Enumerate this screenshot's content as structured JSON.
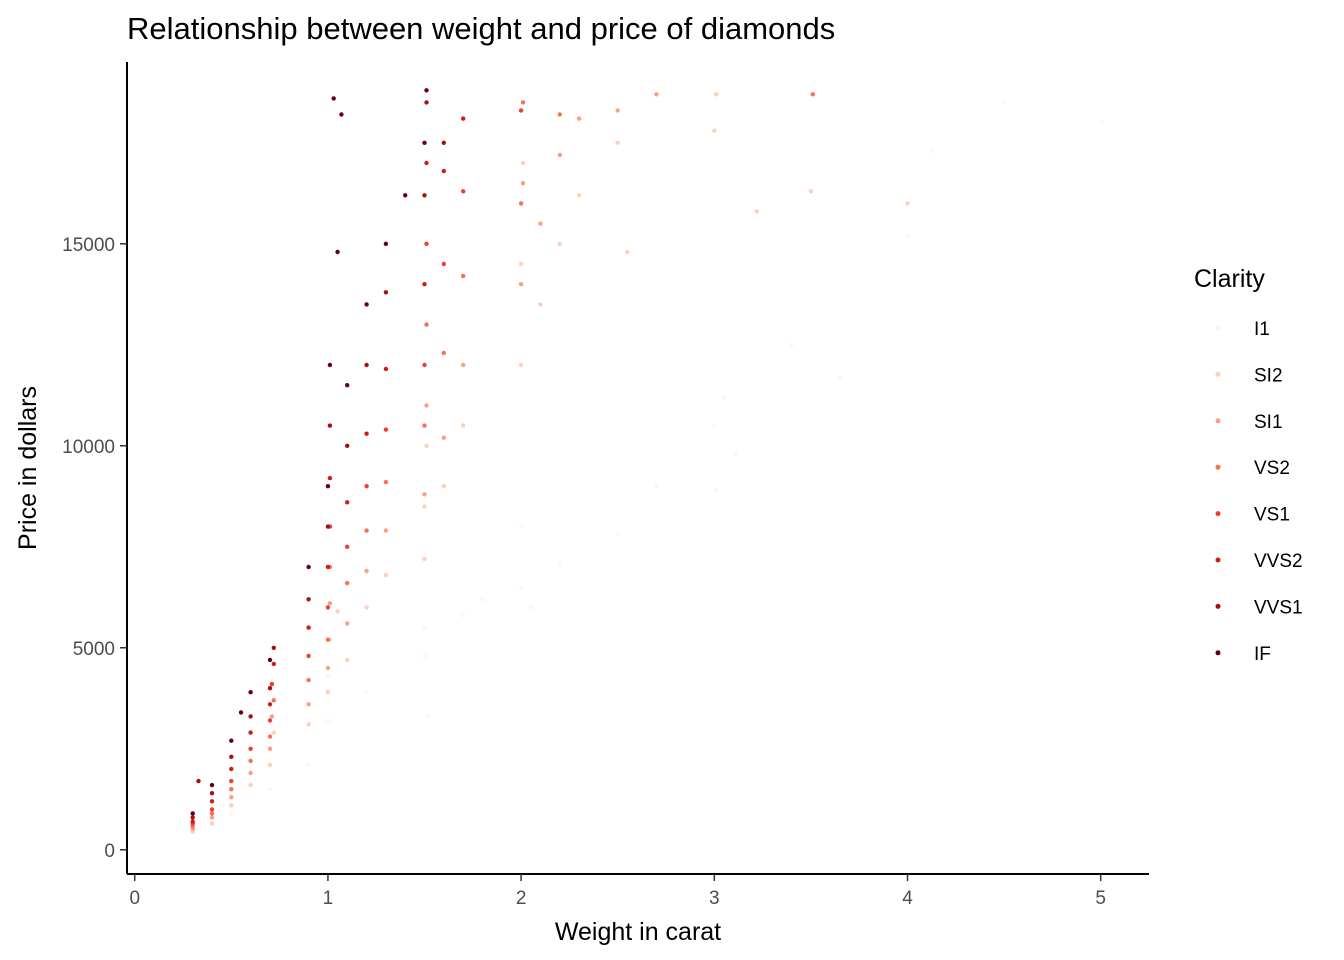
{
  "chart_data": {
    "type": "scatter",
    "title": "Relationship between weight and price of diamonds",
    "xlabel": "Weight in carat",
    "ylabel": "Price in dollars",
    "xlim": [
      -0.04,
      5.25
    ],
    "ylim": [
      -600,
      19500
    ],
    "xticks": [
      0,
      1,
      2,
      3,
      4,
      5
    ],
    "yticks": [
      0,
      5000,
      10000,
      15000
    ],
    "grid": false,
    "legend": {
      "title": "Clarity",
      "position": "right",
      "items": [
        {
          "label": "I1",
          "color": "#fff5f0"
        },
        {
          "label": "SI2",
          "color": "#fdd0bc"
        },
        {
          "label": "SI1",
          "color": "#fc9e80"
        },
        {
          "label": "VS2",
          "color": "#fb7050"
        },
        {
          "label": "VS1",
          "color": "#f03d2e"
        },
        {
          "label": "VVS2",
          "color": "#d01b1d"
        },
        {
          "label": "VVS1",
          "color": "#a50f15"
        },
        {
          "label": "IF",
          "color": "#67000d"
        }
      ]
    },
    "series": [
      {
        "name": "I1",
        "color": "#fff5f0",
        "points": [
          [
            0.32,
            500
          ],
          [
            0.5,
            900
          ],
          [
            0.7,
            1500
          ],
          [
            0.9,
            2100
          ],
          [
            1.0,
            3200
          ],
          [
            1.0,
            4300
          ],
          [
            1.2,
            3900
          ],
          [
            1.5,
            4800
          ],
          [
            1.5,
            5500
          ],
          [
            1.52,
            3300
          ],
          [
            1.7,
            5800
          ],
          [
            1.8,
            6200
          ],
          [
            2.0,
            6500
          ],
          [
            2.0,
            8000
          ],
          [
            2.05,
            6000
          ],
          [
            2.2,
            7100
          ],
          [
            2.5,
            7800
          ],
          [
            2.7,
            9000
          ],
          [
            3.0,
            10500
          ],
          [
            3.01,
            8900
          ],
          [
            3.05,
            11200
          ],
          [
            3.11,
            9800
          ],
          [
            3.4,
            12500
          ],
          [
            3.65,
            11700
          ],
          [
            4.0,
            15200
          ],
          [
            4.13,
            17300
          ],
          [
            4.5,
            18500
          ],
          [
            5.01,
            18000
          ]
        ]
      },
      {
        "name": "SI2",
        "color": "#fdd0bc",
        "points": [
          [
            0.3,
            450
          ],
          [
            0.4,
            650
          ],
          [
            0.5,
            1100
          ],
          [
            0.6,
            1600
          ],
          [
            0.7,
            2100
          ],
          [
            0.72,
            2900
          ],
          [
            0.9,
            3100
          ],
          [
            1.0,
            3900
          ],
          [
            1.01,
            5200
          ],
          [
            1.05,
            5900
          ],
          [
            1.1,
            4700
          ],
          [
            1.2,
            6000
          ],
          [
            1.3,
            6800
          ],
          [
            1.5,
            7200
          ],
          [
            1.5,
            8500
          ],
          [
            1.51,
            10000
          ],
          [
            1.6,
            9000
          ],
          [
            1.7,
            10500
          ],
          [
            2.0,
            12000
          ],
          [
            2.0,
            14500
          ],
          [
            2.01,
            17000
          ],
          [
            2.1,
            13500
          ],
          [
            2.2,
            15000
          ],
          [
            2.3,
            16200
          ],
          [
            2.5,
            17500
          ],
          [
            2.55,
            14800
          ],
          [
            3.0,
            17800
          ],
          [
            3.01,
            18700
          ],
          [
            3.22,
            15800
          ],
          [
            3.5,
            16300
          ],
          [
            4.0,
            16000
          ]
        ]
      },
      {
        "name": "SI1",
        "color": "#fc9e80",
        "points": [
          [
            0.3,
            520
          ],
          [
            0.4,
            800
          ],
          [
            0.5,
            1300
          ],
          [
            0.6,
            1900
          ],
          [
            0.7,
            2500
          ],
          [
            0.71,
            3300
          ],
          [
            0.9,
            3600
          ],
          [
            1.0,
            4500
          ],
          [
            1.01,
            6100
          ],
          [
            1.1,
            5600
          ],
          [
            1.2,
            6900
          ],
          [
            1.3,
            7900
          ],
          [
            1.5,
            8800
          ],
          [
            1.51,
            11000
          ],
          [
            1.6,
            10200
          ],
          [
            1.7,
            12000
          ],
          [
            2.0,
            14000
          ],
          [
            2.01,
            16500
          ],
          [
            2.1,
            15500
          ],
          [
            2.2,
            17200
          ],
          [
            2.3,
            18100
          ],
          [
            2.5,
            18300
          ],
          [
            2.7,
            18700
          ]
        ]
      },
      {
        "name": "VS2",
        "color": "#fb7050",
        "points": [
          [
            0.3,
            580
          ],
          [
            0.4,
            900
          ],
          [
            0.5,
            1500
          ],
          [
            0.6,
            2200
          ],
          [
            0.7,
            2800
          ],
          [
            0.72,
            3700
          ],
          [
            0.9,
            4200
          ],
          [
            1.0,
            5200
          ],
          [
            1.01,
            7000
          ],
          [
            1.1,
            6600
          ],
          [
            1.2,
            7900
          ],
          [
            1.3,
            9100
          ],
          [
            1.5,
            10500
          ],
          [
            1.51,
            13000
          ],
          [
            1.6,
            12300
          ],
          [
            1.7,
            14200
          ],
          [
            2.0,
            16000
          ],
          [
            2.01,
            18500
          ],
          [
            2.2,
            18200
          ],
          [
            3.51,
            18700
          ]
        ]
      },
      {
        "name": "VS1",
        "color": "#f03d2e",
        "points": [
          [
            0.3,
            650
          ],
          [
            0.4,
            1000
          ],
          [
            0.5,
            1700
          ],
          [
            0.6,
            2500
          ],
          [
            0.7,
            3200
          ],
          [
            0.71,
            4100
          ],
          [
            0.9,
            4800
          ],
          [
            1.0,
            6000
          ],
          [
            1.01,
            8000
          ],
          [
            1.1,
            7500
          ],
          [
            1.2,
            9000
          ],
          [
            1.3,
            10400
          ],
          [
            1.5,
            12000
          ],
          [
            1.51,
            15000
          ],
          [
            1.6,
            14500
          ],
          [
            1.7,
            16300
          ],
          [
            2.0,
            18300
          ]
        ]
      },
      {
        "name": "VVS2",
        "color": "#d01b1d",
        "points": [
          [
            0.3,
            700
          ],
          [
            0.4,
            1200
          ],
          [
            0.5,
            2000
          ],
          [
            0.6,
            2900
          ],
          [
            0.7,
            3600
          ],
          [
            0.72,
            4600
          ],
          [
            0.9,
            5500
          ],
          [
            1.0,
            7000
          ],
          [
            1.01,
            9200
          ],
          [
            1.1,
            8600
          ],
          [
            1.2,
            10300
          ],
          [
            1.3,
            11900
          ],
          [
            1.5,
            14000
          ],
          [
            1.51,
            17000
          ],
          [
            1.6,
            16800
          ],
          [
            1.7,
            18100
          ]
        ]
      },
      {
        "name": "VVS1",
        "color": "#a50f15",
        "points": [
          [
            0.3,
            800
          ],
          [
            0.33,
            1700
          ],
          [
            0.4,
            1400
          ],
          [
            0.5,
            2300
          ],
          [
            0.6,
            3300
          ],
          [
            0.7,
            4000
          ],
          [
            0.72,
            5000
          ],
          [
            0.9,
            6200
          ],
          [
            1.0,
            8000
          ],
          [
            1.01,
            10500
          ],
          [
            1.1,
            10000
          ],
          [
            1.2,
            12000
          ],
          [
            1.3,
            13800
          ],
          [
            1.5,
            16200
          ],
          [
            1.51,
            18500
          ],
          [
            1.6,
            17500
          ]
        ]
      },
      {
        "name": "IF",
        "color": "#67000d",
        "points": [
          [
            0.3,
            900
          ],
          [
            0.4,
            1600
          ],
          [
            0.5,
            2700
          ],
          [
            0.55,
            3400
          ],
          [
            0.6,
            3900
          ],
          [
            0.7,
            4700
          ],
          [
            0.9,
            7000
          ],
          [
            1.0,
            9000
          ],
          [
            1.01,
            12000
          ],
          [
            1.05,
            14800
          ],
          [
            1.1,
            11500
          ],
          [
            1.2,
            13500
          ],
          [
            1.3,
            15000
          ],
          [
            1.4,
            16200
          ],
          [
            1.5,
            17500
          ],
          [
            1.51,
            18800
          ],
          [
            1.03,
            18600
          ],
          [
            1.07,
            18200
          ]
        ]
      }
    ]
  }
}
